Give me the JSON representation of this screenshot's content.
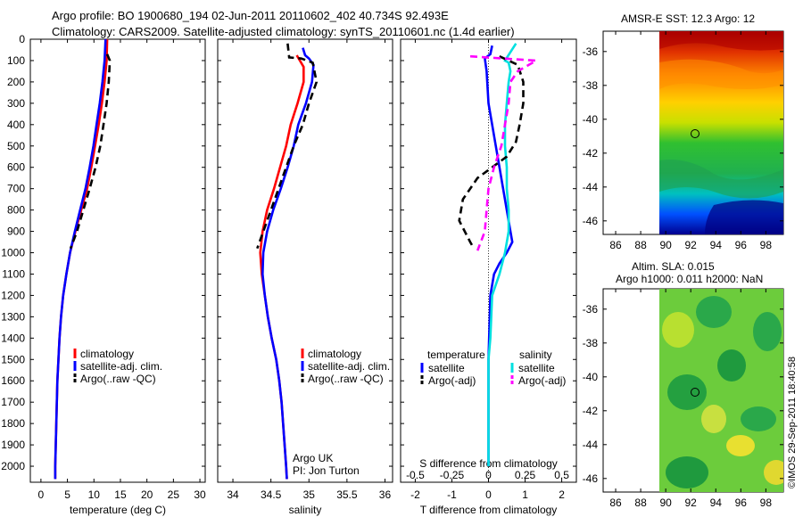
{
  "header": {
    "line1": "Argo profile: BO 1900680_194 02-Jun-2011 20110602_402 40.734S 92.493E",
    "line2": "Climatology: CARS2009. Satellite-adjusted climatology: synTS_20110601.nc (1.4d earlier)"
  },
  "colors": {
    "climatology": "#ff0000",
    "satellite": "#0000ff",
    "argo": "#000000",
    "temp_satellite": "#0000ff",
    "temp_argo": "#000000",
    "sal_satellite": "#00e0e0",
    "sal_argo": "#ff00ff"
  },
  "chart_data": [
    {
      "type": "line",
      "id": "temperature",
      "xlabel": "temperature (deg C)",
      "ylabel": "",
      "xlim": [
        -2,
        31
      ],
      "ylim": [
        2075,
        0
      ],
      "xticks": [
        0,
        5,
        10,
        15,
        20,
        25,
        30
      ],
      "yticks": [
        0,
        100,
        200,
        300,
        400,
        500,
        600,
        700,
        800,
        900,
        1000,
        1100,
        1200,
        1300,
        1400,
        1500,
        1600,
        1700,
        1800,
        1900,
        2000
      ],
      "legend": [
        "climatology",
        "satellite-adj. clim.",
        "Argo(..raw -QC)"
      ],
      "series": [
        {
          "name": "climatology",
          "style": "solid",
          "color": "#ff0000",
          "points": [
            [
              12.5,
              0
            ],
            [
              12.4,
              100
            ],
            [
              12.0,
              200
            ],
            [
              11.5,
              300
            ],
            [
              10.9,
              400
            ],
            [
              10.2,
              500
            ],
            [
              9.5,
              600
            ],
            [
              8.7,
              700
            ],
            [
              7.6,
              800
            ],
            [
              6.5,
              900
            ],
            [
              5.5,
              1000
            ],
            [
              4.8,
              1100
            ],
            [
              4.2,
              1200
            ],
            [
              3.8,
              1300
            ],
            [
              3.5,
              1400
            ],
            [
              3.3,
              1500
            ],
            [
              3.1,
              1600
            ],
            [
              3.0,
              1700
            ],
            [
              2.9,
              1800
            ],
            [
              2.8,
              1900
            ],
            [
              2.7,
              2000
            ],
            [
              2.7,
              2060
            ]
          ]
        },
        {
          "name": "satellite-adj. clim.",
          "style": "solid",
          "color": "#0000ff",
          "points": [
            [
              12.2,
              0
            ],
            [
              12.0,
              100
            ],
            [
              11.6,
              200
            ],
            [
              11.1,
              300
            ],
            [
              10.5,
              400
            ],
            [
              9.9,
              500
            ],
            [
              9.2,
              600
            ],
            [
              8.4,
              700
            ],
            [
              7.4,
              800
            ],
            [
              6.4,
              900
            ],
            [
              5.5,
              1000
            ],
            [
              4.8,
              1100
            ],
            [
              4.2,
              1200
            ],
            [
              3.8,
              1300
            ],
            [
              3.5,
              1400
            ],
            [
              3.3,
              1500
            ],
            [
              3.1,
              1600
            ],
            [
              3.0,
              1700
            ],
            [
              2.9,
              1800
            ],
            [
              2.8,
              1900
            ],
            [
              2.7,
              2000
            ],
            [
              2.7,
              2060
            ]
          ]
        },
        {
          "name": "Argo(..raw -QC)",
          "style": "dash",
          "color": "#000000",
          "points": [
            [
              12.5,
              70
            ],
            [
              13.0,
              100
            ],
            [
              12.8,
              200
            ],
            [
              12.4,
              300
            ],
            [
              11.8,
              400
            ],
            [
              11.2,
              500
            ],
            [
              10.3,
              600
            ],
            [
              9.2,
              700
            ],
            [
              8.0,
              800
            ],
            [
              6.8,
              900
            ],
            [
              5.6,
              980
            ]
          ]
        }
      ],
      "annotations": []
    },
    {
      "type": "line",
      "id": "salinity",
      "xlabel": "salinity",
      "ylabel": "",
      "xlim": [
        33.8,
        36.1
      ],
      "ylim": [
        2075,
        0
      ],
      "xticks": [
        34,
        34.5,
        35,
        35.5,
        36
      ],
      "legend": [
        "climatology",
        "satellite-adj. clim.",
        "Argo(..raw -QC)"
      ],
      "series": [
        {
          "name": "climatology",
          "style": "solid",
          "color": "#ff0000",
          "points": [
            [
              34.84,
              75
            ],
            [
              34.93,
              130
            ],
            [
              34.93,
              200
            ],
            [
              34.85,
              300
            ],
            [
              34.76,
              400
            ],
            [
              34.7,
              500
            ],
            [
              34.62,
              600
            ],
            [
              34.54,
              700
            ],
            [
              34.45,
              800
            ],
            [
              34.39,
              900
            ],
            [
              34.36,
              1000
            ],
            [
              34.38,
              1100
            ],
            [
              34.42,
              1200
            ],
            [
              34.46,
              1300
            ],
            [
              34.51,
              1400
            ],
            [
              34.57,
              1500
            ],
            [
              34.61,
              1600
            ],
            [
              34.64,
              1700
            ],
            [
              34.66,
              1800
            ],
            [
              34.68,
              1900
            ],
            [
              34.7,
              2000
            ],
            [
              34.71,
              2060
            ]
          ]
        },
        {
          "name": "satellite-adj. clim.",
          "style": "solid",
          "color": "#0000ff",
          "points": [
            [
              34.92,
              40
            ],
            [
              34.95,
              75
            ],
            [
              35.0,
              90
            ],
            [
              35.06,
              120
            ],
            [
              35.04,
              200
            ],
            [
              34.96,
              300
            ],
            [
              34.86,
              400
            ],
            [
              34.8,
              500
            ],
            [
              34.72,
              600
            ],
            [
              34.63,
              700
            ],
            [
              34.53,
              800
            ],
            [
              34.45,
              900
            ],
            [
              34.4,
              1000
            ],
            [
              34.39,
              1100
            ],
            [
              34.42,
              1200
            ],
            [
              34.46,
              1300
            ],
            [
              34.51,
              1400
            ],
            [
              34.57,
              1500
            ],
            [
              34.61,
              1600
            ],
            [
              34.64,
              1700
            ],
            [
              34.66,
              1800
            ],
            [
              34.68,
              1900
            ],
            [
              34.7,
              2000
            ],
            [
              34.71,
              2060
            ]
          ]
        },
        {
          "name": "Argo(..raw -QC)",
          "style": "dash",
          "color": "#000000",
          "points": [
            [
              34.72,
              20
            ],
            [
              34.74,
              85
            ],
            [
              34.9,
              90
            ],
            [
              35.05,
              110
            ],
            [
              35.1,
              200
            ],
            [
              35.0,
              300
            ],
            [
              34.92,
              400
            ],
            [
              34.8,
              500
            ],
            [
              34.7,
              600
            ],
            [
              34.6,
              700
            ],
            [
              34.5,
              800
            ],
            [
              34.4,
              900
            ],
            [
              34.32,
              980
            ]
          ]
        }
      ],
      "annotations": [
        "Argo UK",
        "PI: Jon Turton"
      ]
    },
    {
      "type": "line",
      "id": "difference",
      "xlabel": "T difference from climatology",
      "xlabel_top": "S difference from climatology",
      "xlim": [
        -2.4,
        2.4
      ],
      "ylim": [
        2075,
        0
      ],
      "xticks": [
        -2,
        -1,
        0,
        1,
        2
      ],
      "xticks_top": [
        "-0.5",
        "-0.25",
        "0",
        "0.25",
        "0.5"
      ],
      "legend_groups": [
        "temperature",
        "salinity"
      ],
      "legend": [
        "satellite",
        "Argo(-adj)",
        "satellite",
        "Argo(-adj)"
      ],
      "series": [
        {
          "name": "temperature satellite",
          "style": "solid",
          "color": "#0000ff",
          "points": [
            [
              0.1,
              30
            ],
            [
              0.05,
              70
            ],
            [
              -0.1,
              90
            ],
            [
              -0.05,
              150
            ],
            [
              0,
              300
            ],
            [
              0.1,
              400
            ],
            [
              0.2,
              500
            ],
            [
              0.3,
              600
            ],
            [
              0.4,
              700
            ],
            [
              0.5,
              800
            ],
            [
              0.6,
              900
            ],
            [
              0.65,
              950
            ],
            [
              0.5,
              1000
            ],
            [
              0.3,
              1050
            ],
            [
              0.15,
              1100
            ],
            [
              0.05,
              1200
            ],
            [
              0,
              1500
            ],
            [
              0,
              2000
            ]
          ]
        },
        {
          "name": "salinity satellite",
          "style": "solid",
          "color": "#00e0e0",
          "points": [
            [
              0.75,
              20
            ],
            [
              0.6,
              60
            ],
            [
              0.45,
              100
            ],
            [
              0.55,
              110
            ],
            [
              0.6,
              150
            ],
            [
              0.55,
              200
            ],
            [
              0.5,
              300
            ],
            [
              0.45,
              400
            ],
            [
              0.45,
              500
            ],
            [
              0.5,
              600
            ],
            [
              0.5,
              700
            ],
            [
              0.55,
              800
            ],
            [
              0.55,
              900
            ],
            [
              0.45,
              1000
            ],
            [
              0.3,
              1100
            ],
            [
              0.1,
              1200
            ],
            [
              0.05,
              1400
            ],
            [
              0,
              1500
            ],
            [
              0,
              1600
            ],
            [
              0,
              2000
            ]
          ]
        },
        {
          "name": "temperature Argo(-adj)",
          "style": "dash",
          "color": "#000000",
          "points": [
            [
              0.3,
              80
            ],
            [
              0.8,
              120
            ],
            [
              0.95,
              200
            ],
            [
              0.95,
              300
            ],
            [
              0.85,
              400
            ],
            [
              0.75,
              480
            ],
            [
              0.5,
              550
            ],
            [
              0.1,
              600
            ],
            [
              -0.3,
              650
            ],
            [
              -0.7,
              750
            ],
            [
              -0.8,
              850
            ],
            [
              -0.5,
              950
            ],
            [
              -0.4,
              980
            ]
          ]
        },
        {
          "name": "salinity Argo(-adj)",
          "style": "dash",
          "color": "#ff00ff",
          "points": [
            [
              -0.5,
              80
            ],
            [
              1.3,
              100
            ],
            [
              0.8,
              150
            ],
            [
              0.6,
              200
            ],
            [
              0.55,
              300
            ],
            [
              0.45,
              400
            ],
            [
              0.35,
              500
            ],
            [
              0.15,
              600
            ],
            [
              0,
              700
            ],
            [
              -0.05,
              800
            ],
            [
              -0.1,
              900
            ],
            [
              -0.3,
              990
            ]
          ]
        }
      ],
      "annotations": []
    }
  ],
  "maps": [
    {
      "id": "sst-map",
      "title": "AMSR-E SST: 12.3 Argo: 12",
      "lat_ticks": [
        "-36",
        "-38",
        "-40",
        "-42",
        "-44",
        "-46"
      ],
      "lon_ticks": [
        "86",
        "88",
        "90",
        "92",
        "94",
        "96",
        "98"
      ],
      "argo_marker": {
        "lon": 92.49,
        "lat": -40.73
      }
    },
    {
      "id": "sla-map",
      "title_line1": "Altim. SLA: 0.015",
      "title_line2": "Argo h1000: 0.011 h2000: NaN",
      "lat_ticks": [
        "-36",
        "-38",
        "-40",
        "-42",
        "-44",
        "-46"
      ],
      "lon_ticks": [
        "86",
        "88",
        "90",
        "92",
        "94",
        "96",
        "98"
      ],
      "argo_marker": {
        "lon": 92.49,
        "lat": -40.73
      }
    }
  ],
  "credit": "©IMOS 29-Sep-2011 18:40:58"
}
